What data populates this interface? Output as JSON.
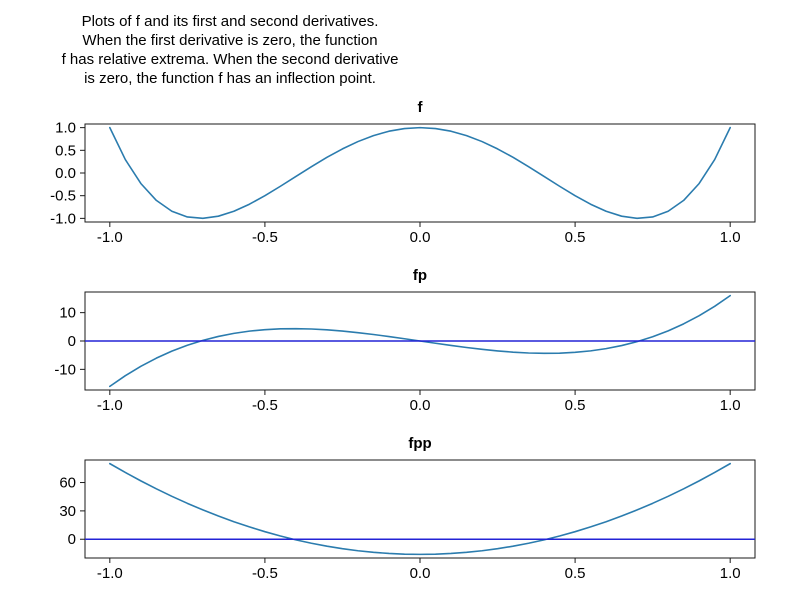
{
  "description": {
    "lines": [
      "Plots of f and its first and second derivatives.",
      "When the first derivative is zero, the function",
      "f has relative extrema. When the second derivative",
      "is zero, the function f has an inflection point."
    ]
  },
  "colors": {
    "curve": "#2b7cae",
    "zero_line": "#2323d6",
    "axis": "#1a1a1a",
    "text": "#000000",
    "background": "#ffffff"
  },
  "chart_data": [
    {
      "type": "line",
      "title": "f",
      "x": [
        -1,
        -0.95,
        -0.9,
        -0.85,
        -0.8,
        -0.75,
        -0.7,
        -0.65,
        -0.6,
        -0.55,
        -0.5,
        -0.45,
        -0.4,
        -0.35,
        -0.3,
        -0.25,
        -0.2,
        -0.15,
        -0.1,
        -0.05,
        0,
        0.05,
        0.1,
        0.15,
        0.2,
        0.25,
        0.3,
        0.35,
        0.4,
        0.45,
        0.5,
        0.55,
        0.6,
        0.65,
        0.7,
        0.75,
        0.8,
        0.85,
        0.9,
        0.95,
        1
      ],
      "y": [
        1,
        0.296,
        -0.231,
        -0.604,
        -0.843,
        -0.969,
        -0.999,
        -0.952,
        -0.843,
        -0.688,
        -0.5,
        -0.292,
        -0.075,
        0.14,
        0.345,
        0.531,
        0.693,
        0.824,
        0.921,
        0.98,
        1,
        0.98,
        0.921,
        0.824,
        0.693,
        0.531,
        0.345,
        0.14,
        -0.075,
        -0.292,
        -0.5,
        -0.688,
        -0.843,
        -0.952,
        -0.999,
        -0.969,
        -0.843,
        -0.604,
        -0.231,
        0.296,
        1
      ],
      "xlim": [
        -1,
        1
      ],
      "ylim": [
        -1,
        1
      ],
      "xticks": [
        -1,
        -0.5,
        0,
        0.5,
        1
      ],
      "xtick_labels": [
        "-1.0",
        "-0.5",
        "0.0",
        "0.5",
        "1.0"
      ],
      "yticks": [
        1,
        0.5,
        0,
        -0.5,
        -1
      ],
      "ytick_labels": [
        "1.0",
        "0.5",
        "0.0",
        "-0.5",
        "-1.0"
      ],
      "zero_line": false,
      "grid": false,
      "legend": null
    },
    {
      "type": "line",
      "title": "fp",
      "x": [
        -1,
        -0.95,
        -0.9,
        -0.85,
        -0.8,
        -0.75,
        -0.7,
        -0.65,
        -0.6,
        -0.55,
        -0.5,
        -0.45,
        -0.4,
        -0.35,
        -0.3,
        -0.25,
        -0.2,
        -0.15,
        -0.1,
        -0.05,
        0,
        0.05,
        0.1,
        0.15,
        0.2,
        0.25,
        0.3,
        0.35,
        0.4,
        0.45,
        0.5,
        0.55,
        0.6,
        0.65,
        0.7,
        0.75,
        0.8,
        0.85,
        0.9,
        0.95,
        1
      ],
      "y": [
        -16,
        -12.236,
        -8.928,
        -6.052,
        -3.584,
        -1.5,
        0.224,
        1.612,
        2.688,
        3.476,
        4,
        4.284,
        4.352,
        4.228,
        3.936,
        3.5,
        2.944,
        2.292,
        1.568,
        0.796,
        0,
        -0.796,
        -1.568,
        -2.292,
        -2.944,
        -3.5,
        -3.936,
        -4.228,
        -4.352,
        -4.284,
        -4,
        -3.476,
        -2.688,
        -1.612,
        -0.224,
        1.5,
        3.584,
        6.052,
        8.928,
        12.236,
        16
      ],
      "xlim": [
        -1,
        1
      ],
      "ylim": [
        -16,
        16
      ],
      "xticks": [
        -1,
        -0.5,
        0,
        0.5,
        1
      ],
      "xtick_labels": [
        "-1.0",
        "-0.5",
        "0.0",
        "0.5",
        "1.0"
      ],
      "yticks": [
        10,
        0,
        -10
      ],
      "ytick_labels": [
        "10",
        "0",
        "-10"
      ],
      "zero_line": true,
      "grid": false,
      "legend": null
    },
    {
      "type": "line",
      "title": "fpp",
      "x": [
        -1,
        -0.95,
        -0.9,
        -0.85,
        -0.8,
        -0.75,
        -0.7,
        -0.65,
        -0.6,
        -0.55,
        -0.5,
        -0.45,
        -0.4,
        -0.35,
        -0.3,
        -0.25,
        -0.2,
        -0.15,
        -0.1,
        -0.05,
        0,
        0.05,
        0.1,
        0.15,
        0.2,
        0.25,
        0.3,
        0.35,
        0.4,
        0.45,
        0.5,
        0.55,
        0.6,
        0.65,
        0.7,
        0.75,
        0.8,
        0.85,
        0.9,
        0.95,
        1
      ],
      "y": [
        80,
        70.64,
        61.76,
        53.36,
        45.44,
        38,
        31.04,
        24.56,
        18.56,
        13.04,
        8,
        3.44,
        -0.64,
        -4.24,
        -7.36,
        -10,
        -12.16,
        -13.84,
        -15.04,
        -15.76,
        -16,
        -15.76,
        -15.04,
        -13.84,
        -12.16,
        -10,
        -7.36,
        -4.24,
        -0.64,
        3.44,
        8,
        13.04,
        18.56,
        24.56,
        31.04,
        38,
        45.44,
        53.36,
        61.76,
        70.64,
        80
      ],
      "xlim": [
        -1,
        1
      ],
      "ylim": [
        -16,
        80
      ],
      "xticks": [
        -1,
        -0.5,
        0,
        0.5,
        1
      ],
      "xtick_labels": [
        "-1.0",
        "-0.5",
        "0.0",
        "0.5",
        "1.0"
      ],
      "yticks": [
        60,
        30,
        0
      ],
      "ytick_labels": [
        "60",
        "30",
        "0"
      ],
      "zero_line": true,
      "grid": false,
      "legend": null
    }
  ]
}
